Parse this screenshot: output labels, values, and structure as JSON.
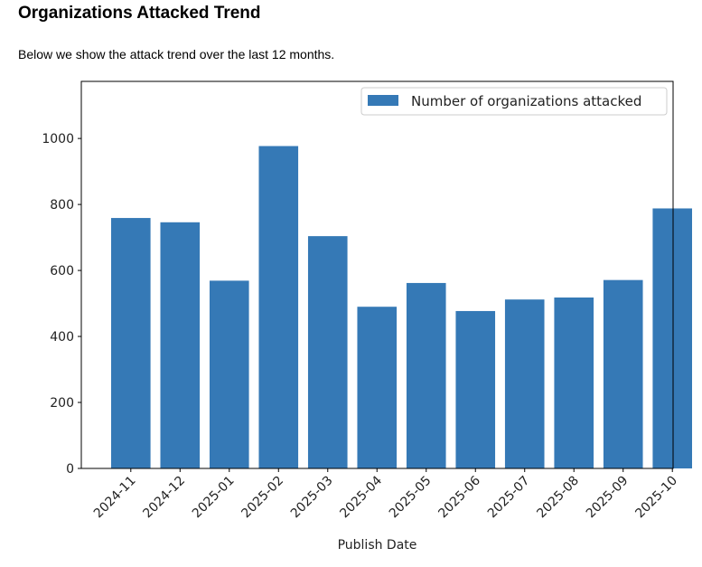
{
  "heading": "Organizations Attacked Trend",
  "description": "Below we show the attack trend over the last 12 months.",
  "chart_data": {
    "type": "bar",
    "title": "",
    "xlabel": "Publish Date",
    "ylabel": "",
    "categories": [
      "2024-11",
      "2024-12",
      "2025-01",
      "2025-02",
      "2025-03",
      "2025-04",
      "2025-05",
      "2025-06",
      "2025-07",
      "2025-08",
      "2025-09",
      "2025-10"
    ],
    "series": [
      {
        "name": "Number of organizations attacked",
        "values": [
          759,
          746,
          569,
          977,
          704,
          490,
          562,
          477,
          512,
          518,
          571,
          788
        ]
      }
    ],
    "ylim": [
      0,
      1173
    ],
    "yticks": [
      0,
      200,
      400,
      600,
      800,
      1000
    ],
    "legend": "top-right",
    "grid": false,
    "color": "#3579b6"
  }
}
